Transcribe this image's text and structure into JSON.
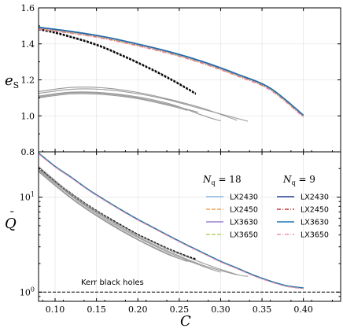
{
  "chart_data": [
    {
      "type": "line",
      "panel": "top",
      "ylabel": "e_S",
      "ylim": [
        0.8,
        1.6
      ],
      "yticks": [
        "0.8",
        "1.0",
        "1.2",
        "1.4",
        "1.6"
      ],
      "xlim": [
        0.08,
        0.445
      ],
      "grid": true,
      "series": [
        {
          "style": "gray-group",
          "curves": [
            {
              "x": [
                0.08,
                0.12,
                0.16,
                0.2,
                0.24,
                0.28,
                0.32
              ],
              "y": [
                1.135,
                1.158,
                1.155,
                1.13,
                1.09,
                1.04,
                0.975
              ]
            },
            {
              "x": [
                0.08,
                0.12,
                0.16,
                0.2,
                0.24,
                0.28,
                0.333
              ],
              "y": [
                1.125,
                1.148,
                1.146,
                1.123,
                1.085,
                1.035,
                0.97
              ]
            },
            {
              "x": [
                0.08,
                0.12,
                0.16,
                0.2,
                0.24,
                0.28,
                0.3
              ],
              "y": [
                1.11,
                1.132,
                1.128,
                1.105,
                1.065,
                1.0,
                0.972
              ]
            },
            {
              "x": [
                0.08,
                0.12,
                0.16,
                0.2,
                0.24,
                0.26
              ],
              "y": [
                1.1,
                1.122,
                1.118,
                1.095,
                1.055,
                1.03
              ]
            },
            {
              "x": [
                0.08,
                0.12,
                0.16,
                0.2,
                0.24,
                0.273
              ],
              "y": [
                1.105,
                1.128,
                1.124,
                1.1,
                1.06,
                1.02
              ]
            }
          ]
        },
        {
          "style": "black-dashed",
          "x": [
            0.08,
            0.1,
            0.12,
            0.14,
            0.16,
            0.18,
            0.2,
            0.22,
            0.24,
            0.26,
            0.27
          ],
          "y": [
            1.48,
            1.46,
            1.435,
            1.408,
            1.375,
            1.335,
            1.293,
            1.248,
            1.2,
            1.148,
            1.12
          ]
        },
        {
          "style": "colored-group",
          "x": [
            0.08,
            0.12,
            0.16,
            0.2,
            0.24,
            0.28,
            0.32,
            0.36,
            0.4
          ],
          "y": [
            1.488,
            1.465,
            1.435,
            1.395,
            1.35,
            1.295,
            1.228,
            1.15,
            1.0
          ]
        }
      ]
    },
    {
      "type": "line",
      "panel": "bottom",
      "ylabel": "Q̄",
      "xlabel": "C",
      "yscale": "log",
      "ylim": [
        0.8,
        30
      ],
      "xlim": [
        0.08,
        0.445
      ],
      "xticks": [
        "0.10",
        "0.15",
        "0.20",
        "0.25",
        "0.30",
        "0.35",
        "0.40"
      ],
      "grid": true,
      "annotation": "Kerr black holes",
      "legend": {
        "placement": "right",
        "group_titles": [
          "N_q = 18",
          "N_q = 9"
        ],
        "labels": [
          "LX2430",
          "LX2450",
          "LX3630",
          "LX3650"
        ]
      },
      "series": [
        {
          "style": "colored-group",
          "x": [
            0.08,
            0.1,
            0.12,
            0.14,
            0.16,
            0.18,
            0.2,
            0.22,
            0.24,
            0.26,
            0.28,
            0.3,
            0.32,
            0.34,
            0.36,
            0.38,
            0.4
          ],
          "y": [
            29,
            21,
            16,
            12,
            9.3,
            7.3,
            5.8,
            4.7,
            3.8,
            3.1,
            2.55,
            2.1,
            1.78,
            1.5,
            1.3,
            1.16,
            1.1
          ]
        },
        {
          "style": "black-dashed",
          "x": [
            0.08,
            0.1,
            0.12,
            0.14,
            0.16,
            0.18,
            0.2,
            0.22,
            0.24,
            0.26,
            0.27
          ],
          "y": [
            20.5,
            14.5,
            10.7,
            8.1,
            6.3,
            5.0,
            4.0,
            3.3,
            2.75,
            2.35,
            2.2
          ]
        },
        {
          "style": "gray-group",
          "curves": [
            {
              "x": [
                0.08,
                0.12,
                0.16,
                0.2,
                0.24,
                0.28,
                0.32,
                0.333
              ],
              "y": [
                21,
                10.8,
                6.3,
                4.0,
                2.75,
                2.0,
                1.53,
                1.47
              ]
            },
            {
              "x": [
                0.08,
                0.12,
                0.16,
                0.2,
                0.24,
                0.28,
                0.3
              ],
              "y": [
                19.5,
                10.2,
                5.9,
                3.75,
                2.55,
                1.85,
                1.62
              ]
            },
            {
              "x": [
                0.08,
                0.12,
                0.16,
                0.2,
                0.24,
                0.26
              ],
              "y": [
                19,
                9.8,
                5.7,
                3.6,
                2.45,
                2.1
              ]
            },
            {
              "x": [
                0.08,
                0.12,
                0.16,
                0.2,
                0.24,
                0.28,
                0.32
              ],
              "y": [
                20,
                10.4,
                6.1,
                3.85,
                2.62,
                1.9,
                1.52
              ]
            },
            {
              "x": [
                0.08,
                0.12,
                0.16,
                0.2,
                0.24,
                0.273
              ],
              "y": [
                18.5,
                9.6,
                5.6,
                3.55,
                2.42,
                1.98
              ]
            }
          ]
        },
        {
          "style": "black-dashed-horizontal",
          "x": [
            0.08,
            0.445
          ],
          "y": [
            1,
            1
          ]
        }
      ]
    }
  ],
  "colors": {
    "lx2430_18": "#8ab6e0",
    "lx2450_18": "#f0a050",
    "lx3630_18": "#9a7fd6",
    "lx3650_18": "#b5d36a",
    "lx2430_9": "#23408e",
    "lx2450_9": "#c23b3b",
    "lx3630_9": "#1f77b4",
    "lx3650_9": "#f08fb0",
    "gray": "#9a9a9a",
    "black": "#000000"
  }
}
